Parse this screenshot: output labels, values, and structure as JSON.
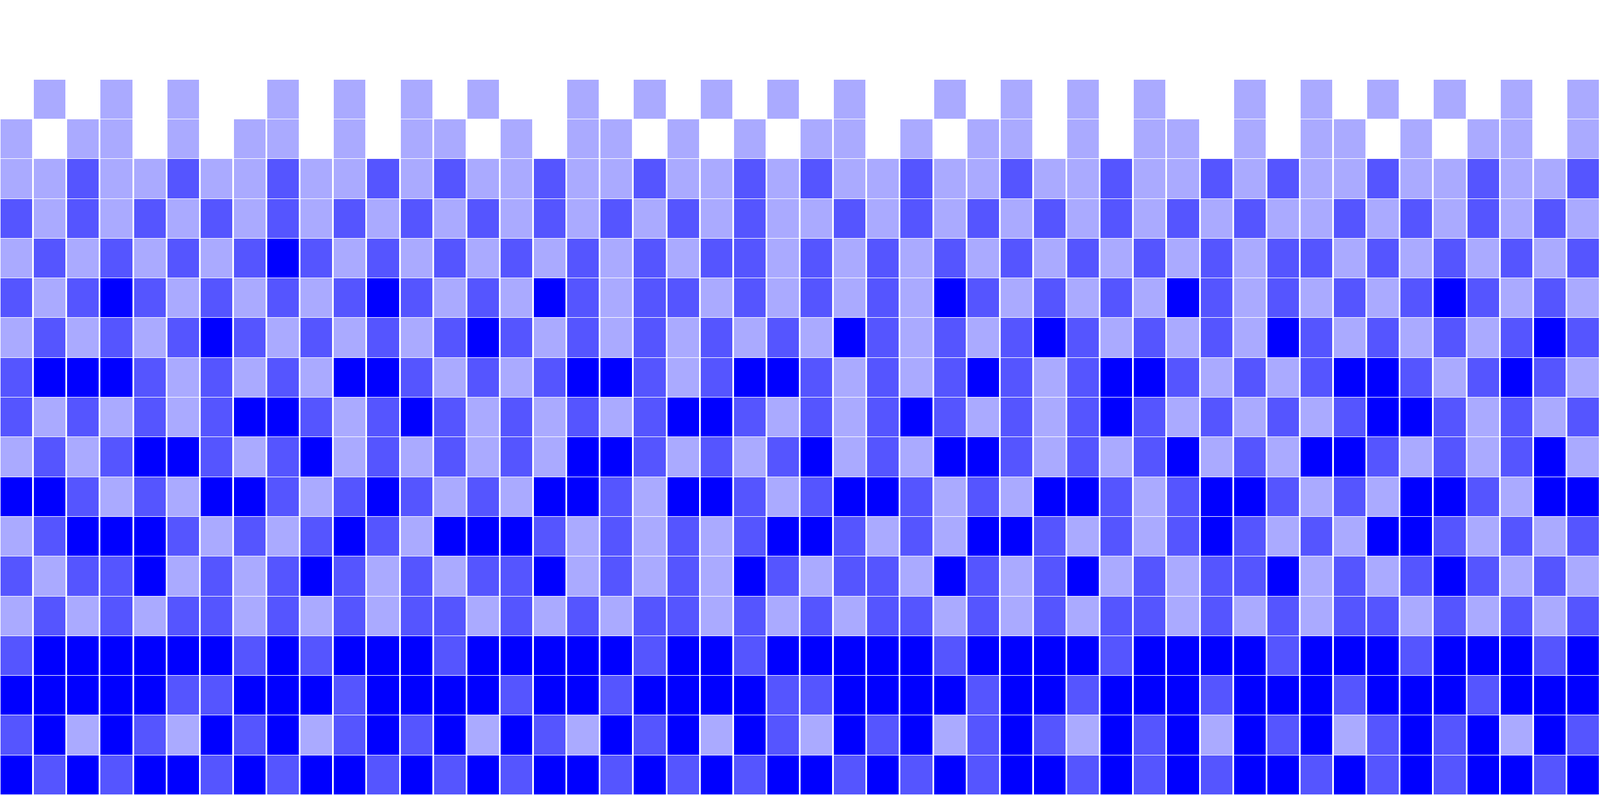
{
  "chart_data": {
    "type": "heatmap",
    "color": "#0000ff",
    "tick_labels": false,
    "grid": false,
    "z": [
      [
        3,
        2,
        3,
        2,
        3,
        3,
        2,
        3,
        2,
        3,
        3,
        2,
        3,
        2,
        3,
        2,
        3,
        3,
        2,
        3,
        2,
        3,
        2,
        3,
        3,
        2,
        3,
        2,
        3,
        2,
        3,
        3,
        2,
        3,
        2,
        3,
        2,
        3,
        3,
        2,
        3,
        2,
        3,
        2,
        3,
        3,
        2,
        3
      ],
      [
        2,
        3,
        1,
        3,
        2,
        1,
        3,
        2,
        3,
        1,
        2,
        3,
        2,
        3,
        1,
        3,
        2,
        1,
        3,
        2,
        3,
        1,
        3,
        2,
        1,
        3,
        2,
        3,
        1,
        2,
        3,
        2,
        1,
        3,
        2,
        3,
        1,
        3,
        2,
        3,
        1,
        2,
        3,
        2,
        3,
        1,
        3,
        2
      ],
      [
        3,
        3,
        3,
        3,
        3,
        2,
        2,
        3,
        3,
        3,
        2,
        3,
        3,
        3,
        3,
        2,
        3,
        3,
        2,
        3,
        3,
        3,
        3,
        2,
        2,
        3,
        3,
        3,
        3,
        2,
        3,
        3,
        2,
        3,
        3,
        3,
        2,
        3,
        3,
        3,
        2,
        3,
        3,
        3,
        2,
        3,
        3,
        3
      ],
      [
        2,
        3,
        3,
        3,
        3,
        3,
        3,
        2,
        3,
        2,
        3,
        3,
        3,
        2,
        3,
        3,
        3,
        3,
        3,
        2,
        3,
        3,
        2,
        3,
        3,
        3,
        3,
        3,
        2,
        3,
        3,
        3,
        3,
        2,
        3,
        3,
        3,
        3,
        2,
        3,
        3,
        3,
        2,
        3,
        3,
        3,
        2,
        3
      ],
      [
        1,
        2,
        1,
        2,
        1,
        2,
        2,
        1,
        2,
        1,
        2,
        1,
        2,
        2,
        1,
        2,
        1,
        2,
        1,
        2,
        2,
        1,
        2,
        1,
        2,
        1,
        2,
        2,
        1,
        2,
        1,
        2,
        1,
        2,
        2,
        1,
        2,
        1,
        2,
        1,
        2,
        2,
        1,
        2,
        1,
        2,
        1,
        2
      ],
      [
        2,
        1,
        2,
        2,
        3,
        1,
        2,
        1,
        2,
        3,
        2,
        1,
        2,
        1,
        2,
        2,
        3,
        1,
        2,
        1,
        2,
        1,
        3,
        2,
        1,
        2,
        2,
        1,
        3,
        2,
        1,
        2,
        3,
        1,
        2,
        1,
        2,
        2,
        3,
        1,
        2,
        1,
        2,
        3,
        2,
        1,
        2,
        1
      ],
      [
        1,
        2,
        3,
        3,
        3,
        2,
        1,
        2,
        1,
        2,
        3,
        2,
        1,
        3,
        3,
        3,
        2,
        1,
        2,
        1,
        2,
        1,
        2,
        3,
        3,
        2,
        1,
        2,
        1,
        3,
        3,
        2,
        1,
        2,
        1,
        2,
        3,
        2,
        1,
        2,
        1,
        3,
        3,
        2,
        1,
        2,
        1,
        2
      ],
      [
        3,
        3,
        2,
        1,
        2,
        1,
        3,
        3,
        2,
        1,
        2,
        3,
        2,
        1,
        2,
        1,
        3,
        3,
        2,
        1,
        3,
        3,
        2,
        1,
        2,
        3,
        3,
        2,
        1,
        2,
        1,
        3,
        3,
        2,
        1,
        2,
        3,
        3,
        2,
        1,
        2,
        1,
        3,
        3,
        2,
        1,
        3,
        3
      ],
      [
        1,
        2,
        1,
        2,
        3,
        3,
        2,
        1,
        2,
        3,
        1,
        2,
        1,
        2,
        1,
        2,
        1,
        3,
        3,
        2,
        1,
        2,
        1,
        2,
        3,
        1,
        2,
        1,
        3,
        3,
        2,
        1,
        2,
        1,
        2,
        3,
        1,
        2,
        1,
        3,
        3,
        2,
        1,
        2,
        1,
        2,
        3,
        1
      ],
      [
        2,
        1,
        2,
        1,
        2,
        1,
        2,
        3,
        3,
        2,
        1,
        2,
        3,
        2,
        1,
        2,
        1,
        2,
        1,
        2,
        3,
        3,
        2,
        1,
        2,
        1,
        2,
        3,
        2,
        1,
        2,
        1,
        2,
        3,
        2,
        1,
        2,
        1,
        2,
        1,
        2,
        3,
        3,
        2,
        1,
        2,
        1,
        2
      ],
      [
        2,
        3,
        3,
        3,
        2,
        1,
        2,
        1,
        2,
        1,
        3,
        3,
        2,
        1,
        2,
        1,
        2,
        3,
        3,
        2,
        1,
        2,
        3,
        3,
        2,
        1,
        2,
        1,
        2,
        3,
        2,
        1,
        2,
        3,
        3,
        2,
        1,
        2,
        1,
        2,
        3,
        3,
        2,
        1,
        2,
        3,
        2,
        1
      ],
      [
        1,
        2,
        1,
        2,
        1,
        2,
        3,
        2,
        1,
        2,
        1,
        2,
        1,
        2,
        3,
        2,
        1,
        2,
        1,
        2,
        1,
        2,
        1,
        2,
        1,
        3,
        2,
        1,
        2,
        1,
        2,
        3,
        2,
        1,
        2,
        1,
        2,
        1,
        3,
        2,
        1,
        2,
        1,
        2,
        1,
        2,
        3,
        2
      ],
      [
        2,
        1,
        2,
        3,
        2,
        1,
        2,
        1,
        2,
        1,
        2,
        3,
        2,
        1,
        2,
        1,
        3,
        2,
        1,
        2,
        2,
        1,
        2,
        1,
        2,
        1,
        2,
        1,
        3,
        2,
        1,
        2,
        1,
        2,
        1,
        3,
        2,
        1,
        2,
        1,
        2,
        1,
        2,
        3,
        2,
        1,
        2,
        1
      ],
      [
        1,
        2,
        1,
        2,
        1,
        2,
        1,
        2,
        3,
        2,
        1,
        2,
        1,
        2,
        1,
        2,
        1,
        2,
        1,
        2,
        1,
        2,
        2,
        1,
        2,
        1,
        2,
        1,
        2,
        1,
        2,
        1,
        2,
        1,
        2,
        1,
        2,
        1,
        2,
        2,
        1,
        2,
        1,
        2,
        1,
        2,
        1,
        2
      ],
      [
        2,
        1,
        2,
        1,
        2,
        1,
        2,
        1,
        2,
        1,
        2,
        1,
        2,
        1,
        2,
        1,
        2,
        1,
        2,
        1,
        2,
        1,
        2,
        1,
        1,
        2,
        1,
        2,
        1,
        2,
        1,
        2,
        1,
        2,
        1,
        2,
        1,
        2,
        1,
        1,
        2,
        1,
        2,
        1,
        2,
        1,
        2,
        1
      ],
      [
        1,
        1,
        2,
        1,
        1,
        2,
        1,
        1,
        2,
        1,
        1,
        2,
        1,
        2,
        1,
        1,
        2,
        1,
        1,
        2,
        1,
        1,
        2,
        1,
        2,
        1,
        1,
        2,
        1,
        1,
        2,
        1,
        1,
        2,
        1,
        1,
        2,
        1,
        2,
        1,
        1,
        2,
        1,
        1,
        2,
        1,
        1,
        2
      ],
      [
        1,
        0,
        1,
        1,
        0,
        1,
        0,
        1,
        1,
        0,
        1,
        0,
        1,
        1,
        0,
        1,
        0,
        1,
        1,
        0,
        1,
        0,
        1,
        0,
        1,
        1,
        0,
        1,
        0,
        1,
        1,
        0,
        1,
        0,
        1,
        1,
        0,
        1,
        0,
        1,
        1,
        0,
        1,
        0,
        1,
        1,
        0,
        1
      ],
      [
        0,
        1,
        0,
        1,
        0,
        1,
        0,
        0,
        1,
        0,
        1,
        0,
        1,
        0,
        1,
        0,
        0,
        1,
        0,
        1,
        0,
        1,
        0,
        1,
        0,
        1,
        0,
        0,
        1,
        0,
        1,
        0,
        1,
        0,
        1,
        0,
        0,
        1,
        0,
        1,
        0,
        1,
        0,
        1,
        0,
        1,
        0,
        1
      ],
      [
        0,
        0,
        0,
        0,
        0,
        0,
        0,
        0,
        0,
        0,
        0,
        0,
        0,
        0,
        0,
        0,
        0,
        0,
        0,
        0,
        0,
        0,
        0,
        0,
        0,
        0,
        0,
        0,
        0,
        0,
        0,
        0,
        0,
        0,
        0,
        0,
        0,
        0,
        0,
        0,
        0,
        0,
        0,
        0,
        0,
        0,
        0,
        0
      ],
      [
        0,
        0,
        0,
        0,
        0,
        0,
        0,
        0,
        0,
        0,
        0,
        0,
        0,
        0,
        0,
        0,
        0,
        0,
        0,
        0,
        0,
        0,
        0,
        0,
        0,
        0,
        0,
        0,
        0,
        0,
        0,
        0,
        0,
        0,
        0,
        0,
        0,
        0,
        0,
        0,
        0,
        0,
        0,
        0,
        0,
        0,
        0,
        0
      ]
    ]
  }
}
